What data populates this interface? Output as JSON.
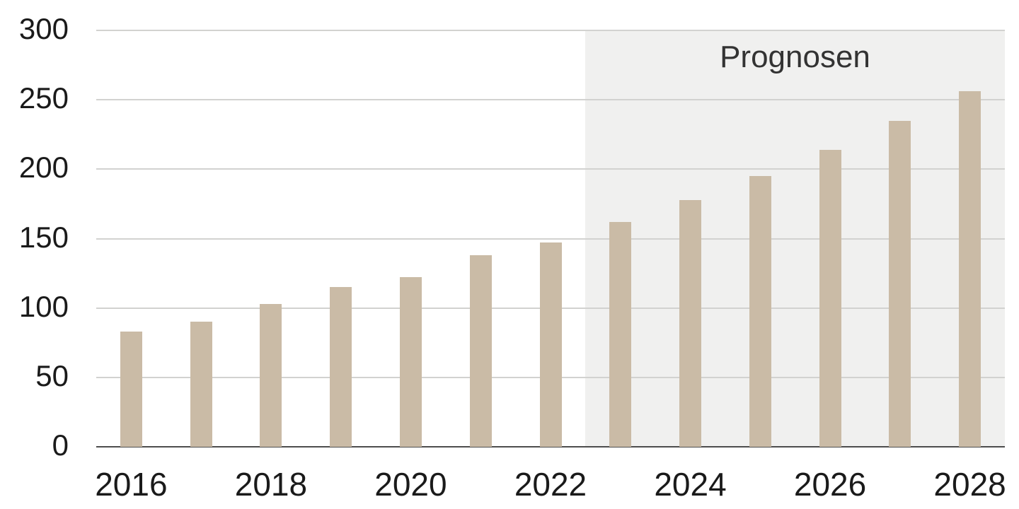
{
  "chart_data": {
    "type": "bar",
    "categories": [
      "2016",
      "2017",
      "2018",
      "2019",
      "2020",
      "2021",
      "2022",
      "2023",
      "2024",
      "2025",
      "2026",
      "2027",
      "2028"
    ],
    "values": [
      83,
      90,
      103,
      115,
      122,
      138,
      147,
      162,
      178,
      195,
      214,
      235,
      256
    ],
    "title": "",
    "xlabel": "",
    "ylabel": "",
    "ylim": [
      0,
      300
    ],
    "yticks": [
      0,
      50,
      100,
      150,
      200,
      250,
      300
    ],
    "xtick_labels_shown": [
      "2016",
      "2018",
      "2020",
      "2022",
      "2024",
      "2026",
      "2028"
    ],
    "grid": "horizontal",
    "legend": "none",
    "forecast": {
      "label": "Prognosen",
      "start_category": "2023",
      "start_index": 7
    },
    "colors": {
      "bar": "#cabba6",
      "forecast_background": "#f0f0ef",
      "gridline": "#d2d2d0",
      "axis_line": "#4d4d4d",
      "tick_text": "#1a1a1a",
      "forecast_label_text": "#333333",
      "page_background": "#ffffff"
    }
  }
}
